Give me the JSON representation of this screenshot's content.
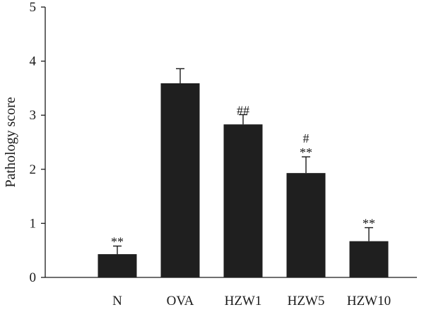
{
  "chart_data": {
    "type": "bar",
    "categories": [
      "N",
      "OVA",
      "HZW1",
      "HZW5",
      "HZW10"
    ],
    "values": [
      0.43,
      3.59,
      2.83,
      1.93,
      0.67
    ],
    "errors": [
      0.15,
      0.27,
      0.18,
      0.3,
      0.25
    ],
    "annotations": [
      [
        "**"
      ],
      [],
      [
        "##"
      ],
      [
        "#",
        "**"
      ],
      [
        "**"
      ]
    ],
    "ylabel": "Pathology score",
    "xlabel": "",
    "ylim": [
      0,
      5
    ],
    "yticks": [
      0,
      1,
      2,
      3,
      4,
      5
    ],
    "bar_color": "#1f1f1f",
    "grid": false
  }
}
